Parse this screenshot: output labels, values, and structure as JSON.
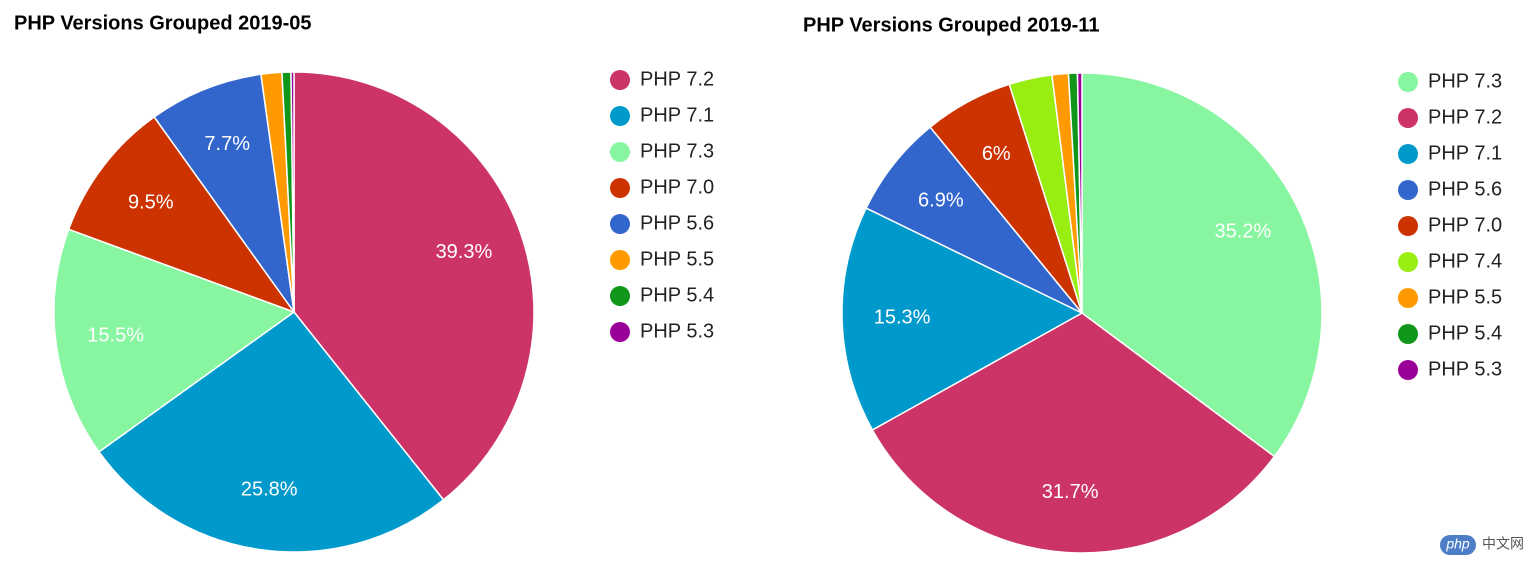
{
  "chart_data": [
    {
      "type": "pie",
      "title": "PHP Versions Grouped 2019-05",
      "categories": [
        "PHP 7.2",
        "PHP 7.1",
        "PHP 7.3",
        "PHP 7.0",
        "PHP 5.6",
        "PHP 5.5",
        "PHP 5.4",
        "PHP 5.3"
      ],
      "values": [
        39.3,
        25.8,
        15.5,
        9.5,
        7.7,
        1.4,
        0.6,
        0.2
      ],
      "value_labels": [
        "39.3%",
        "25.8%",
        "15.5%",
        "9.5%",
        "7.7%",
        null,
        null,
        null
      ],
      "colors": [
        "#cc3366",
        "#0099cc",
        "#88f5a0",
        "#cc3300",
        "#3366cc",
        "#ff9900",
        "#109618",
        "#990099"
      ]
    },
    {
      "type": "pie",
      "title": "PHP Versions Grouped 2019-11",
      "categories": [
        "PHP 7.3",
        "PHP 7.2",
        "PHP 7.1",
        "PHP 5.6",
        "PHP 7.0",
        "PHP 7.4",
        "PHP 5.5",
        "PHP 5.4",
        "PHP 5.3"
      ],
      "values": [
        35.2,
        31.7,
        15.3,
        6.9,
        6,
        2.9,
        1.1,
        0.6,
        0.3
      ],
      "value_labels": [
        "35.2%",
        "31.7%",
        "15.3%",
        "6.9%",
        "6%",
        null,
        null,
        null,
        null
      ],
      "colors": [
        "#88f5a0",
        "#cc3366",
        "#0099cc",
        "#3366cc",
        "#cc3300",
        "#99ee11",
        "#ff9900",
        "#109618",
        "#990099"
      ]
    }
  ],
  "watermark": {
    "logo": "php",
    "text": "中文网"
  }
}
